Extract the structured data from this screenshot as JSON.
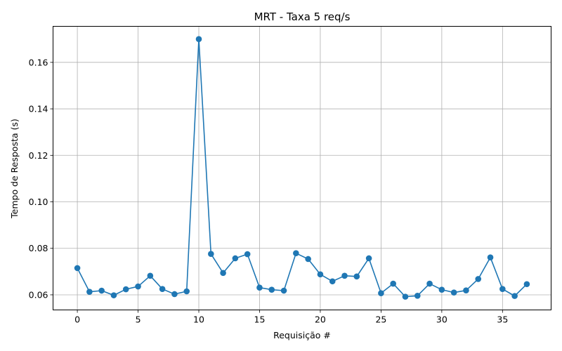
{
  "chart_data": {
    "type": "line",
    "title": "MRT - Taxa 5 req/s",
    "xlabel": "Requisição #",
    "ylabel": "Tempo de Resposta (s)",
    "xlim": [
      -2,
      39
    ],
    "ylim": [
      0.0535,
      0.1755
    ],
    "xticks": [
      0,
      5,
      10,
      15,
      20,
      25,
      30,
      35
    ],
    "yticks": [
      0.06,
      0.08,
      0.1,
      0.12,
      0.14,
      0.16
    ],
    "xtick_labels": [
      "0",
      "5",
      "10",
      "15",
      "20",
      "25",
      "30",
      "35"
    ],
    "ytick_labels": [
      "0.06",
      "0.08",
      "0.10",
      "0.12",
      "0.14",
      "0.16"
    ],
    "grid": true,
    "color": "#1f77b4",
    "marker": "circle",
    "x": [
      0,
      1,
      2,
      3,
      4,
      5,
      6,
      7,
      8,
      9,
      10,
      11,
      12,
      13,
      14,
      15,
      16,
      17,
      18,
      19,
      20,
      21,
      22,
      23,
      24,
      25,
      26,
      27,
      28,
      29,
      30,
      31,
      32,
      33,
      34,
      35,
      36,
      37
    ],
    "y": [
      0.0715,
      0.0613,
      0.0618,
      0.0598,
      0.0624,
      0.0636,
      0.0682,
      0.0625,
      0.0603,
      0.0615,
      0.17,
      0.0776,
      0.0694,
      0.0757,
      0.0775,
      0.0631,
      0.0622,
      0.0618,
      0.0779,
      0.0754,
      0.0688,
      0.0658,
      0.0682,
      0.0679,
      0.0757,
      0.0607,
      0.0648,
      0.0592,
      0.0596,
      0.0648,
      0.0622,
      0.061,
      0.0619,
      0.0668,
      0.0761,
      0.0625,
      0.0595,
      0.0646
    ]
  }
}
